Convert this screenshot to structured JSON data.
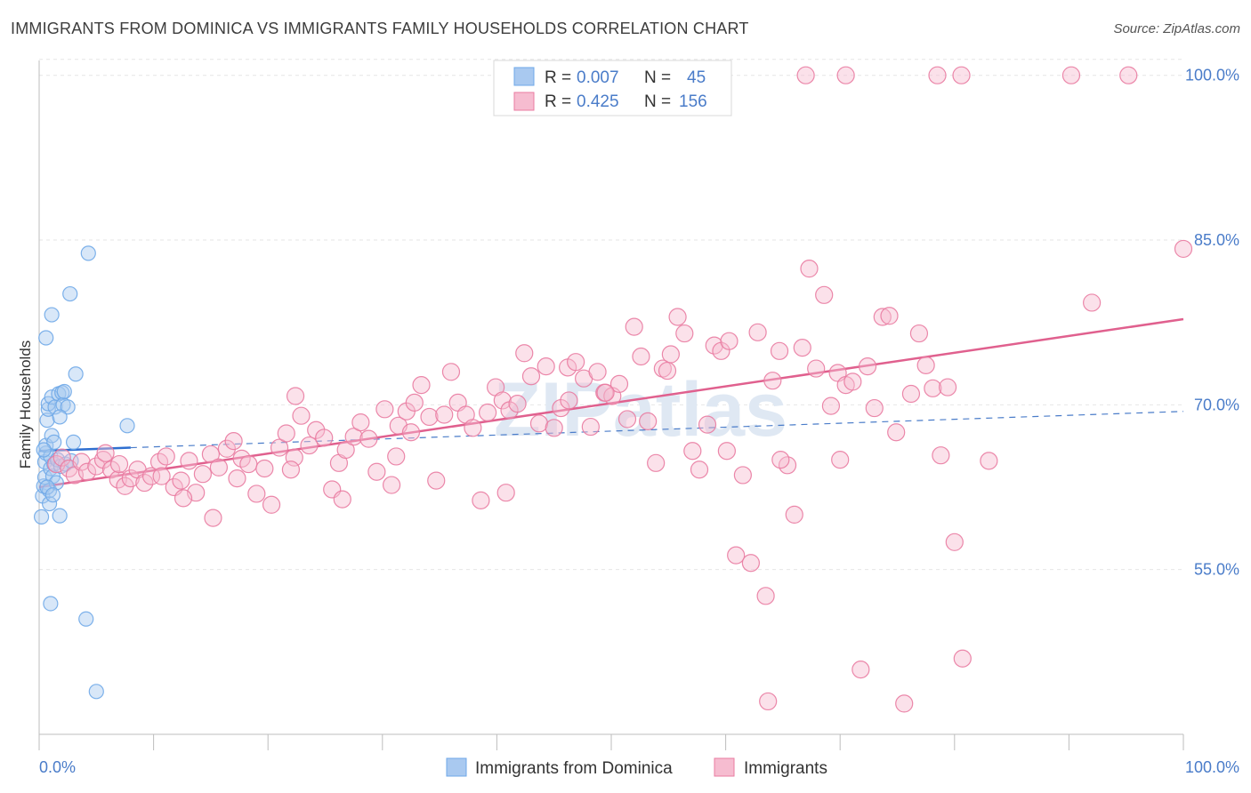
{
  "header": {
    "title": "IMMIGRANTS FROM DOMINICA VS IMMIGRANTS FAMILY HOUSEHOLDS CORRELATION CHART",
    "source": "Source: ZipAtlas.com"
  },
  "chart_data": {
    "type": "scatter",
    "ylabel": "Family Households",
    "x_axis": {
      "min": 0,
      "max": 100,
      "tick_labels": [
        "0.0%",
        "100.0%"
      ]
    },
    "y_axis": {
      "min": 40,
      "max": 102,
      "ticks": [
        55,
        70,
        85,
        100
      ],
      "tick_labels": [
        "55.0%",
        "70.0%",
        "85.0%",
        "100.0%"
      ]
    },
    "grid": true,
    "watermark": "ZIPatlas",
    "legend": {
      "placement": "top-center",
      "rows": [
        {
          "r_label": "R =",
          "r_value": "0.007",
          "n_label": "N =",
          "n_value": "45"
        },
        {
          "r_label": "R =",
          "r_value": "0.425",
          "n_label": "N =",
          "n_value": "156"
        }
      ]
    },
    "series": [
      {
        "name": "Immigrants from Dominica",
        "color": "#6fa8e8",
        "fill": "#a9c9f0",
        "trend": {
          "x": [
            0,
            8
          ],
          "y": [
            65.8,
            66.1
          ],
          "dashed_extension": {
            "x": [
              8,
              100
            ],
            "y": [
              66.1,
              69.4
            ]
          }
        },
        "points": [
          [
            0.2,
            59.8
          ],
          [
            0.3,
            61.7
          ],
          [
            0.4,
            62.6
          ],
          [
            0.5,
            63.4
          ],
          [
            0.5,
            64.8
          ],
          [
            0.6,
            65.6
          ],
          [
            0.6,
            66.3
          ],
          [
            0.7,
            68.6
          ],
          [
            0.8,
            69.6
          ],
          [
            0.8,
            70.1
          ],
          [
            0.9,
            61.0
          ],
          [
            0.9,
            62.2
          ],
          [
            1.0,
            64.2
          ],
          [
            1.0,
            65.3
          ],
          [
            1.1,
            67.2
          ],
          [
            1.1,
            70.7
          ],
          [
            1.2,
            63.5
          ],
          [
            1.3,
            64.6
          ],
          [
            1.3,
            66.6
          ],
          [
            1.4,
            69.8
          ],
          [
            1.5,
            62.9
          ],
          [
            1.6,
            65.0
          ],
          [
            1.7,
            71.0
          ],
          [
            1.8,
            59.9
          ],
          [
            1.9,
            64.4
          ],
          [
            2.0,
            71.1
          ],
          [
            2.1,
            70.0
          ],
          [
            2.3,
            64.6
          ],
          [
            2.5,
            69.8
          ],
          [
            2.7,
            80.1
          ],
          [
            2.8,
            64.9
          ],
          [
            3.0,
            66.6
          ],
          [
            3.2,
            72.8
          ],
          [
            0.6,
            76.1
          ],
          [
            1.1,
            78.2
          ],
          [
            4.3,
            83.8
          ],
          [
            7.7,
            68.1
          ],
          [
            1.0,
            51.9
          ],
          [
            4.1,
            50.5
          ],
          [
            5.0,
            43.9
          ],
          [
            0.4,
            65.9
          ],
          [
            0.7,
            62.5
          ],
          [
            1.2,
            61.8
          ],
          [
            1.8,
            68.9
          ],
          [
            2.2,
            71.2
          ]
        ]
      },
      {
        "name": "Immigrants",
        "color": "#e97ba1",
        "fill": "#f6bcd0",
        "trend": {
          "x": [
            0,
            100
          ],
          "y": [
            62.5,
            77.8
          ]
        },
        "points": [
          [
            1.5,
            64.6
          ],
          [
            2.0,
            65.2
          ],
          [
            2.6,
            64.2
          ],
          [
            3.1,
            63.6
          ],
          [
            3.7,
            64.8
          ],
          [
            4.2,
            63.9
          ],
          [
            5.0,
            64.4
          ],
          [
            5.6,
            65.0
          ],
          [
            6.3,
            64.1
          ],
          [
            6.9,
            63.2
          ],
          [
            7.5,
            62.6
          ],
          [
            8.0,
            63.3
          ],
          [
            8.6,
            64.1
          ],
          [
            9.2,
            62.9
          ],
          [
            9.8,
            63.5
          ],
          [
            10.5,
            64.8
          ],
          [
            11.1,
            65.3
          ],
          [
            11.8,
            62.5
          ],
          [
            12.4,
            63.1
          ],
          [
            13.1,
            64.9
          ],
          [
            13.7,
            62.0
          ],
          [
            14.3,
            63.7
          ],
          [
            15.0,
            65.5
          ],
          [
            15.7,
            64.3
          ],
          [
            16.4,
            66.0
          ],
          [
            17.0,
            66.7
          ],
          [
            17.7,
            65.1
          ],
          [
            18.3,
            64.6
          ],
          [
            19.0,
            61.9
          ],
          [
            19.7,
            64.2
          ],
          [
            20.3,
            60.9
          ],
          [
            21.0,
            66.1
          ],
          [
            21.6,
            67.4
          ],
          [
            22.3,
            65.2
          ],
          [
            22.9,
            69.0
          ],
          [
            23.6,
            66.3
          ],
          [
            24.2,
            67.7
          ],
          [
            24.9,
            67.0
          ],
          [
            25.6,
            62.3
          ],
          [
            26.2,
            64.7
          ],
          [
            26.8,
            65.9
          ],
          [
            27.5,
            67.1
          ],
          [
            28.1,
            68.4
          ],
          [
            28.8,
            66.9
          ],
          [
            29.5,
            63.9
          ],
          [
            30.2,
            69.6
          ],
          [
            30.8,
            62.7
          ],
          [
            31.4,
            68.1
          ],
          [
            32.1,
            69.4
          ],
          [
            32.8,
            70.2
          ],
          [
            33.4,
            71.8
          ],
          [
            34.1,
            68.9
          ],
          [
            34.7,
            63.1
          ],
          [
            35.4,
            69.1
          ],
          [
            36.0,
            73.0
          ],
          [
            36.6,
            70.2
          ],
          [
            37.3,
            69.1
          ],
          [
            37.9,
            67.9
          ],
          [
            38.6,
            61.3
          ],
          [
            39.2,
            69.3
          ],
          [
            39.9,
            71.6
          ],
          [
            40.5,
            70.4
          ],
          [
            41.1,
            69.5
          ],
          [
            41.8,
            70.1
          ],
          [
            42.4,
            74.7
          ],
          [
            43.0,
            72.6
          ],
          [
            43.7,
            68.3
          ],
          [
            44.3,
            73.5
          ],
          [
            45.0,
            67.9
          ],
          [
            45.6,
            69.7
          ],
          [
            46.2,
            73.4
          ],
          [
            46.9,
            73.9
          ],
          [
            47.6,
            72.4
          ],
          [
            48.2,
            68.0
          ],
          [
            48.8,
            73.0
          ],
          [
            49.4,
            71.1
          ],
          [
            50.1,
            70.8
          ],
          [
            50.7,
            71.9
          ],
          [
            51.4,
            68.7
          ],
          [
            52.0,
            77.1
          ],
          [
            52.6,
            74.4
          ],
          [
            53.2,
            68.5
          ],
          [
            53.9,
            64.7
          ],
          [
            54.5,
            73.3
          ],
          [
            55.2,
            74.6
          ],
          [
            55.8,
            78.0
          ],
          [
            56.4,
            76.5
          ],
          [
            57.1,
            65.8
          ],
          [
            57.7,
            64.1
          ],
          [
            58.4,
            68.2
          ],
          [
            59.0,
            75.4
          ],
          [
            59.6,
            74.9
          ],
          [
            60.3,
            75.8
          ],
          [
            60.9,
            56.3
          ],
          [
            61.5,
            63.6
          ],
          [
            62.2,
            55.6
          ],
          [
            62.8,
            76.6
          ],
          [
            63.5,
            52.6
          ],
          [
            64.1,
            72.2
          ],
          [
            64.7,
            74.9
          ],
          [
            65.4,
            64.5
          ],
          [
            66.0,
            60.0
          ],
          [
            66.7,
            75.2
          ],
          [
            67.3,
            82.4
          ],
          [
            67.9,
            73.3
          ],
          [
            68.6,
            80.0
          ],
          [
            69.2,
            69.9
          ],
          [
            69.8,
            72.9
          ],
          [
            70.5,
            71.8
          ],
          [
            71.1,
            72.1
          ],
          [
            71.8,
            45.9
          ],
          [
            72.4,
            73.5
          ],
          [
            73.0,
            69.7
          ],
          [
            73.7,
            78.0
          ],
          [
            74.3,
            78.1
          ],
          [
            74.9,
            67.5
          ],
          [
            75.6,
            42.8
          ],
          [
            76.2,
            71.0
          ],
          [
            76.9,
            76.5
          ],
          [
            77.5,
            73.6
          ],
          [
            78.1,
            71.5
          ],
          [
            78.8,
            65.4
          ],
          [
            79.4,
            71.6
          ],
          [
            80.0,
            57.5
          ],
          [
            80.7,
            46.9
          ],
          [
            63.7,
            43.0
          ],
          [
            64.8,
            65.0
          ],
          [
            70.0,
            65.0
          ],
          [
            31.2,
            65.3
          ],
          [
            22.4,
            70.8
          ],
          [
            26.5,
            61.4
          ],
          [
            40.8,
            62.0
          ],
          [
            46.3,
            70.4
          ],
          [
            54.9,
            73.1
          ],
          [
            60.1,
            65.8
          ],
          [
            67.0,
            100.0
          ],
          [
            70.5,
            100.0
          ],
          [
            78.5,
            100.0
          ],
          [
            80.6,
            100.0
          ],
          [
            90.2,
            100.0
          ],
          [
            95.2,
            100.0
          ],
          [
            92.0,
            79.3
          ],
          [
            100.0,
            84.2
          ],
          [
            83.0,
            64.9
          ],
          [
            49.5,
            71.1
          ],
          [
            15.2,
            59.7
          ],
          [
            17.3,
            63.3
          ],
          [
            7.0,
            64.6
          ],
          [
            12.6,
            61.5
          ],
          [
            22.0,
            64.1
          ],
          [
            32.5,
            67.5
          ],
          [
            10.7,
            63.5
          ],
          [
            5.8,
            65.6
          ]
        ]
      }
    ],
    "bottom_legend": [
      "Immigrants from Dominica",
      "Immigrants"
    ]
  }
}
